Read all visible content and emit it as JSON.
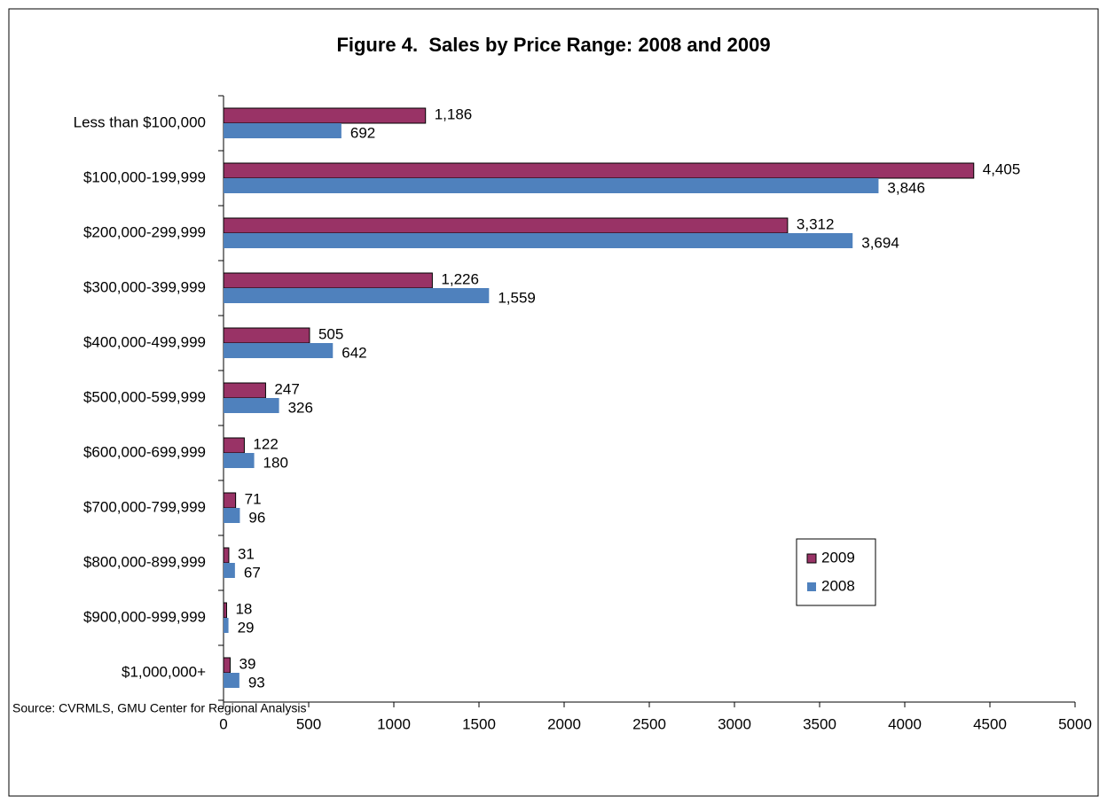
{
  "chart_data": {
    "type": "hbar",
    "title": "Figure 4.  Sales by Price Range: 2008 and 2009",
    "source": "Source: CVRMLS, GMU Center for Regional Analysis",
    "categories": [
      "Less than $100,000",
      "$100,000-199,999",
      "$200,000-299,999",
      "$300,000-399,999",
      "$400,000-499,999",
      "$500,000-599,999",
      "$600,000-699,999",
      "$700,000-799,999",
      "$800,000-899,999",
      "$900,000-999,999",
      "$1,000,000+"
    ],
    "series": [
      {
        "name": "2009",
        "color": "#993366",
        "values": [
          1186,
          4405,
          3312,
          1226,
          505,
          247,
          122,
          71,
          31,
          18,
          39
        ],
        "value_labels": [
          "1,186",
          "4,405",
          "3,312",
          "1,226",
          "505",
          "247",
          "122",
          "71",
          "31",
          "18",
          "39"
        ]
      },
      {
        "name": "2008",
        "color": "#4f81bd",
        "values": [
          692,
          3846,
          3694,
          1559,
          642,
          326,
          180,
          96,
          67,
          29,
          93
        ],
        "value_labels": [
          "692",
          "3,846",
          "3,694",
          "1,559",
          "642",
          "326",
          "180",
          "96",
          "67",
          "29",
          "93"
        ]
      }
    ],
    "xlim": [
      0,
      5000
    ],
    "xticks": [
      0,
      500,
      1000,
      1500,
      2000,
      2500,
      3000,
      3500,
      4000,
      4500,
      5000
    ]
  }
}
